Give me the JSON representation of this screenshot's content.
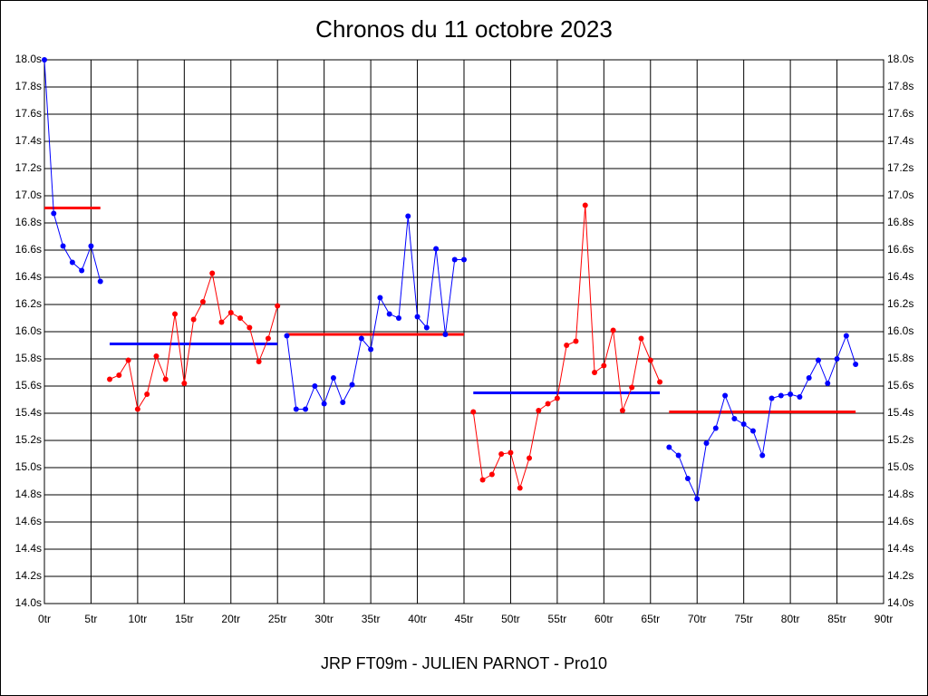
{
  "chart_data": {
    "type": "line",
    "title": "Chronos du 11 octobre 2023",
    "xlabel": "JRP FT09m - JULIEN PARNOT - Pro10",
    "xlim": [
      0,
      90
    ],
    "xticks": [
      {
        "value": 0,
        "label": "0tr"
      },
      {
        "value": 5,
        "label": "5tr"
      },
      {
        "value": 10,
        "label": "10tr"
      },
      {
        "value": 15,
        "label": "15tr"
      },
      {
        "value": 20,
        "label": "20tr"
      },
      {
        "value": 25,
        "label": "25tr"
      },
      {
        "value": 30,
        "label": "30tr"
      },
      {
        "value": 35,
        "label": "35tr"
      },
      {
        "value": 40,
        "label": "40tr"
      },
      {
        "value": 45,
        "label": "45tr"
      },
      {
        "value": 50,
        "label": "50tr"
      },
      {
        "value": 55,
        "label": "55tr"
      },
      {
        "value": 60,
        "label": "60tr"
      },
      {
        "value": 65,
        "label": "65tr"
      },
      {
        "value": 70,
        "label": "70tr"
      },
      {
        "value": 75,
        "label": "75tr"
      },
      {
        "value": 80,
        "label": "80tr"
      },
      {
        "value": 85,
        "label": "85tr"
      },
      {
        "value": 90,
        "label": "90tr"
      }
    ],
    "ylim": [
      14.0,
      18.0
    ],
    "yticks": [
      {
        "value": 14.0,
        "label": "14.0s"
      },
      {
        "value": 14.2,
        "label": "14.2s"
      },
      {
        "value": 14.4,
        "label": "14.4s"
      },
      {
        "value": 14.6,
        "label": "14.6s"
      },
      {
        "value": 14.8,
        "label": "14.8s"
      },
      {
        "value": 15.0,
        "label": "15.0s"
      },
      {
        "value": 15.2,
        "label": "15.2s"
      },
      {
        "value": 15.4,
        "label": "15.4s"
      },
      {
        "value": 15.6,
        "label": "15.6s"
      },
      {
        "value": 15.8,
        "label": "15.8s"
      },
      {
        "value": 16.0,
        "label": "16.0s"
      },
      {
        "value": 16.2,
        "label": "16.2s"
      },
      {
        "value": 16.4,
        "label": "16.4s"
      },
      {
        "value": 16.6,
        "label": "16.6s"
      },
      {
        "value": 16.8,
        "label": "16.8s"
      },
      {
        "value": 17.0,
        "label": "17.0s"
      },
      {
        "value": 17.2,
        "label": "17.2s"
      },
      {
        "value": 17.4,
        "label": "17.4s"
      },
      {
        "value": 17.6,
        "label": "17.6s"
      },
      {
        "value": 17.8,
        "label": "17.8s"
      },
      {
        "value": 18.0,
        "label": "18.0s"
      }
    ],
    "grid": true,
    "series": [
      {
        "color": "#0000ff",
        "x": [
          0,
          1,
          2,
          3,
          4,
          5,
          6
        ],
        "values": [
          18.0,
          16.87,
          16.63,
          16.51,
          16.45,
          16.63,
          16.37
        ]
      },
      {
        "color": "#ff0000",
        "x": [
          7,
          8,
          9,
          10,
          11,
          12,
          13,
          14,
          15,
          16,
          17,
          18,
          19,
          20,
          21,
          22,
          23,
          24,
          25
        ],
        "values": [
          15.65,
          15.68,
          15.79,
          15.43,
          15.54,
          15.82,
          15.65,
          16.13,
          15.62,
          16.09,
          16.22,
          16.43,
          16.07,
          16.14,
          16.1,
          16.03,
          15.78,
          15.95,
          16.19
        ]
      },
      {
        "color": "#0000ff",
        "x": [
          26,
          27,
          28,
          29,
          30,
          31,
          32,
          33,
          34,
          35,
          36,
          37,
          38,
          39,
          40,
          41,
          42,
          43,
          44,
          45
        ],
        "values": [
          15.97,
          15.43,
          15.43,
          15.6,
          15.47,
          15.66,
          15.48,
          15.61,
          15.95,
          15.87,
          16.25,
          16.13,
          16.1,
          16.85,
          16.11,
          16.03,
          16.61,
          15.98,
          16.53,
          16.53
        ]
      },
      {
        "color": "#ff0000",
        "x": [
          46,
          47,
          48,
          49,
          50,
          51,
          52,
          53,
          54,
          55,
          56,
          57,
          58,
          59,
          60,
          61,
          62,
          63,
          64,
          65,
          66
        ],
        "values": [
          15.41,
          14.91,
          14.95,
          15.1,
          15.11,
          14.85,
          15.07,
          15.42,
          15.47,
          15.51,
          15.9,
          15.93,
          16.93,
          15.7,
          15.75,
          16.01,
          15.42,
          15.59,
          15.95,
          15.79,
          15.63
        ]
      },
      {
        "color": "#0000ff",
        "x": [
          67,
          68,
          69,
          70,
          71,
          72,
          73,
          74,
          75,
          76,
          77,
          78,
          79,
          80,
          81,
          82,
          83,
          84,
          85,
          86,
          87
        ],
        "values": [
          15.15,
          15.09,
          14.92,
          14.77,
          15.18,
          15.29,
          15.53,
          15.36,
          15.32,
          15.27,
          15.09,
          15.51,
          15.53,
          15.54,
          15.52,
          15.66,
          15.79,
          15.62,
          15.8,
          15.97,
          15.76
        ]
      }
    ],
    "averages": [
      {
        "color": "#ff0000",
        "x": [
          0,
          6
        ],
        "value": 16.91
      },
      {
        "color": "#0000ff",
        "x": [
          7,
          25
        ],
        "value": 15.91
      },
      {
        "color": "#ff0000",
        "x": [
          26,
          45
        ],
        "value": 15.98
      },
      {
        "color": "#0000ff",
        "x": [
          46,
          66
        ],
        "value": 15.55
      },
      {
        "color": "#ff0000",
        "x": [
          67,
          87
        ],
        "value": 15.41
      }
    ]
  }
}
